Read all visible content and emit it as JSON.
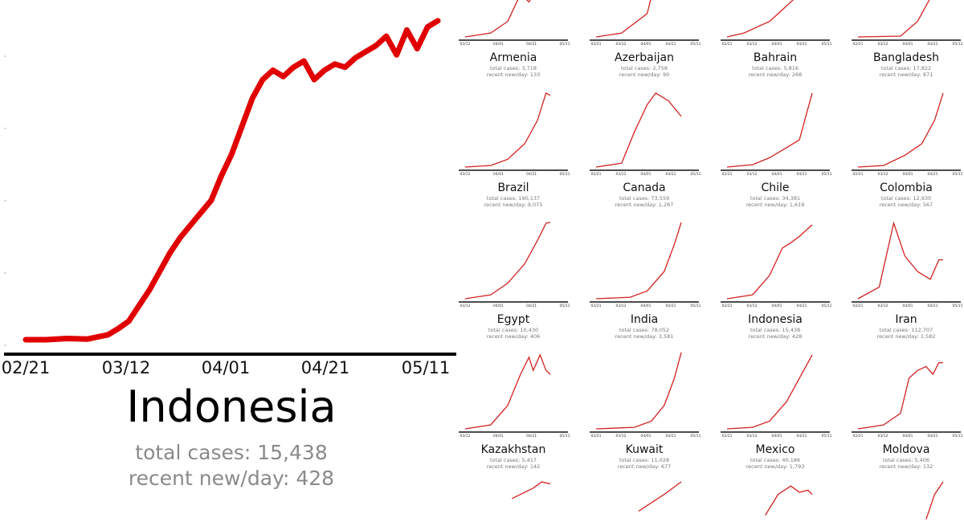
{
  "featured": {
    "country": "Indonesia",
    "total_cases": "total cases: 15,438",
    "recent_new_per_day": "recent new/day: 428",
    "series_color": "#e00000",
    "x_ticks": [
      "02/21",
      "03/12",
      "04/01",
      "04/21",
      "05/11"
    ]
  },
  "small_multiples": {
    "x_ticks": [
      "03/12",
      "04/01",
      "04/21",
      "05/11"
    ],
    "x_ticks_with_start": [
      "02/21",
      "03/12",
      "04/01",
      "04/21",
      "05/11"
    ],
    "line_color": "#d42020",
    "countries": [
      {
        "name": "Armenia",
        "total": "total cases: 3,718",
        "recent": "recent new/day: 133"
      },
      {
        "name": "Azerbaijan",
        "total": "total cases: 2,758",
        "recent": "recent new/day: 90"
      },
      {
        "name": "Bahrain",
        "total": "total cases: 5,816",
        "recent": "recent new/day: 268"
      },
      {
        "name": "Bangladesh",
        "total": "total cases: 17,822",
        "recent": "recent new/day: 871"
      },
      {
        "name": "Brazil",
        "total": "total cases: 190,137",
        "recent": "recent new/day: 9,075"
      },
      {
        "name": "Canada",
        "total": "total cases: 73,559",
        "recent": "recent new/day: 1,267"
      },
      {
        "name": "Chile",
        "total": "total cases: 34,381",
        "recent": "recent new/day: 1,619"
      },
      {
        "name": "Colombia",
        "total": "total cases: 12,930",
        "recent": "recent new/day: 567"
      },
      {
        "name": "Egypt",
        "total": "total cases: 10,430",
        "recent": "recent new/day: 406"
      },
      {
        "name": "India",
        "total": "total cases: 78,052",
        "recent": "recent new/day: 3,581"
      },
      {
        "name": "Indonesia",
        "total": "total cases: 15,438",
        "recent": "recent new/day: 428"
      },
      {
        "name": "Iran",
        "total": "total cases: 112,707",
        "recent": "recent new/day: 1,582"
      },
      {
        "name": "Kazakhstan",
        "total": "total cases: 5,417",
        "recent": "recent new/day: 142"
      },
      {
        "name": "Kuwait",
        "total": "total cases: 11,028",
        "recent": "recent new/day: 677"
      },
      {
        "name": "Mexico",
        "total": "total cases: 40,186",
        "recent": "recent new/day: 1,793"
      },
      {
        "name": "Moldova",
        "total": "total cases: 5,406",
        "recent": "recent new/day: 132"
      }
    ]
  },
  "chart_data": [
    {
      "type": "line",
      "title": "Indonesia",
      "xlabel": "",
      "ylabel": "",
      "x_tick_labels": [
        "02/21",
        "03/12",
        "04/01",
        "04/21",
        "05/11"
      ],
      "ylim": [
        0,
        520
      ],
      "grid": false,
      "series": [
        {
          "name": "",
          "x": [
            0,
            4,
            8,
            12,
            16,
            18,
            20,
            22,
            24,
            26,
            28,
            30,
            32,
            34,
            36,
            38,
            40,
            42,
            44,
            46,
            48,
            50,
            52,
            54,
            56,
            58,
            60,
            62,
            64,
            66,
            68,
            70,
            72,
            74,
            76,
            78,
            80
          ],
          "y": [
            0,
            0,
            2,
            1,
            8,
            18,
            30,
            55,
            80,
            110,
            140,
            165,
            185,
            205,
            225,
            265,
            300,
            345,
            390,
            420,
            435,
            425,
            440,
            450,
            420,
            435,
            445,
            440,
            455,
            465,
            475,
            490,
            460,
            500,
            470,
            505,
            515
          ]
        }
      ]
    }
  ]
}
